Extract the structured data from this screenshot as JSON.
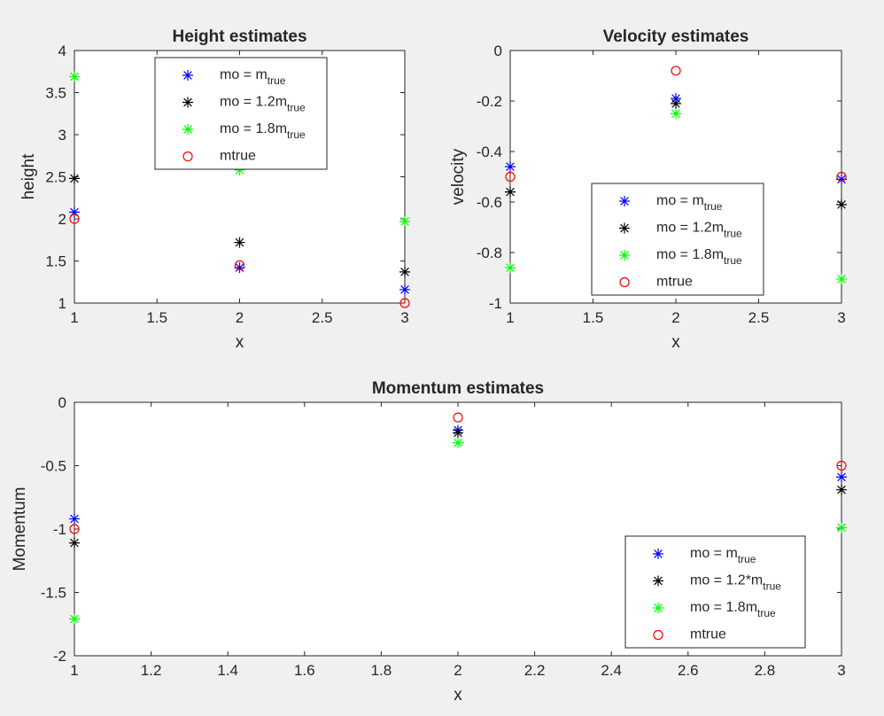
{
  "figure": {
    "background": "#f0f0f0"
  },
  "marker_styles": {
    "blue_star": {
      "color": "#0000ff",
      "shape": "star"
    },
    "black_star": {
      "color": "#000000",
      "shape": "star"
    },
    "green_star": {
      "color": "#00ff00",
      "shape": "star"
    },
    "red_circle": {
      "color": "#ff0000",
      "shape": "circle"
    }
  },
  "chart_data": [
    {
      "type": "scatter",
      "title": "Height estimates",
      "xlabel": "x",
      "ylabel": "height",
      "xlim": [
        1,
        3
      ],
      "ylim": [
        1,
        4
      ],
      "xticks": [
        "1",
        "1.5",
        "2",
        "2.5",
        "3"
      ],
      "yticks": [
        "1",
        "1.5",
        "2",
        "2.5",
        "3",
        "3.5",
        "4"
      ],
      "legend_position": "top-center",
      "x": [
        1,
        2,
        3
      ],
      "series": [
        {
          "name_main": "mo = m",
          "name_sub": "true",
          "style": "blue_star",
          "values": [
            2.08,
            1.42,
            1.16
          ]
        },
        {
          "name_main": "mo = 1.2m",
          "name_sub": "true",
          "style": "black_star",
          "values": [
            2.48,
            1.72,
            1.37
          ]
        },
        {
          "name_main": "mo = 1.8m",
          "name_sub": "true",
          "style": "green_star",
          "values": [
            3.69,
            2.58,
            1.97
          ]
        },
        {
          "name_main": "mtrue",
          "name_sub": "",
          "style": "red_circle",
          "values": [
            2.0,
            1.45,
            1.0
          ]
        }
      ]
    },
    {
      "type": "scatter",
      "title": "Velocity estimates",
      "xlabel": "x",
      "ylabel": "velocity",
      "xlim": [
        1,
        3
      ],
      "ylim": [
        -1,
        0
      ],
      "xticks": [
        "1",
        "1.5",
        "2",
        "2.5",
        "3"
      ],
      "yticks": [
        "-1",
        "-0.8",
        "-0.6",
        "-0.4",
        "-0.2",
        "0"
      ],
      "legend_position": "bottom-center",
      "x": [
        1,
        2,
        3
      ],
      "series": [
        {
          "name_main": "mo = m",
          "name_sub": "true",
          "style": "blue_star",
          "values": [
            -0.46,
            -0.19,
            -0.51
          ]
        },
        {
          "name_main": "mo = 1.2m",
          "name_sub": "true",
          "style": "black_star",
          "values": [
            -0.56,
            -0.21,
            -0.61
          ]
        },
        {
          "name_main": "mo = 1.8m",
          "name_sub": "true",
          "style": "green_star",
          "values": [
            -0.86,
            -0.25,
            -0.905
          ]
        },
        {
          "name_main": "mtrue",
          "name_sub": "",
          "style": "red_circle",
          "values": [
            -0.5,
            -0.08,
            -0.5
          ]
        }
      ]
    },
    {
      "type": "scatter",
      "title": "Momentum estimates",
      "xlabel": "x",
      "ylabel": "Momentum",
      "xlim": [
        1,
        3
      ],
      "ylim": [
        -2,
        0
      ],
      "xticks": [
        "1",
        "1.2",
        "1.4",
        "1.6",
        "1.8",
        "2",
        "2.2",
        "2.4",
        "2.6",
        "2.8",
        "3"
      ],
      "yticks": [
        "-2",
        "-1.5",
        "-1",
        "-0.5",
        "0"
      ],
      "legend_position": "bottom-right",
      "x": [
        1,
        2,
        3
      ],
      "series": [
        {
          "name_main": "mo = m",
          "name_sub": "true",
          "style": "blue_star",
          "values": [
            -0.92,
            -0.22,
            -0.59
          ]
        },
        {
          "name_main": "mo = 1.2*m",
          "name_sub": "true",
          "style": "black_star",
          "values": [
            -1.11,
            -0.24,
            -0.69
          ]
        },
        {
          "name_main": "mo = 1.8m",
          "name_sub": "true",
          "style": "green_star",
          "values": [
            -1.71,
            -0.32,
            -0.99
          ]
        },
        {
          "name_main": "mtrue",
          "name_sub": "",
          "style": "red_circle",
          "values": [
            -1.0,
            -0.12,
            -0.5
          ]
        }
      ]
    }
  ]
}
